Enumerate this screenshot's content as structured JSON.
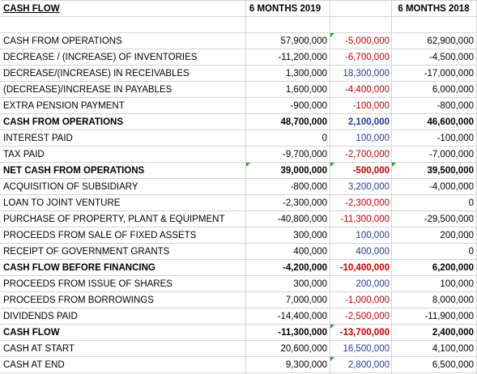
{
  "header": {
    "title": "CASH FLOW",
    "col_a": "6 MONTHS 2019",
    "col_c": "6 MONTHS 2018"
  },
  "rows": [
    {
      "label": "CASH FROM OPERATIONS",
      "a": "57,900,000",
      "b": "-5,000,000",
      "c": "62,900,000",
      "bold": false,
      "b_color": "red"
    },
    {
      "label": "DECREASE / (INCREASE) OF INVENTORIES",
      "a": "-11,200,000",
      "b": "-6,700,000",
      "c": "-4,500,000",
      "bold": false,
      "b_color": "red"
    },
    {
      "label": "DECREASE/(INCREASE) IN RECEIVABLES",
      "a": "1,300,000",
      "b": "18,300,000",
      "c": "-17,000,000",
      "bold": false,
      "b_color": "blue"
    },
    {
      "label": "(DECREASE)/INCREASE IN PAYABLES",
      "a": "1,600,000",
      "b": "-4,400,000",
      "c": "6,000,000",
      "bold": false,
      "b_color": "red"
    },
    {
      "label": "EXTRA PENSION PAYMENT",
      "a": "-900,000",
      "b": "-100,000",
      "c": "-800,000",
      "bold": false,
      "b_color": "red"
    },
    {
      "label": "CASH FROM OPERATIONS",
      "a": "48,700,000",
      "b": "2,100,000",
      "c": "46,600,000",
      "bold": true,
      "b_color": "blue"
    },
    {
      "label": "INTEREST PAID",
      "a": "0",
      "b": "100,000",
      "c": "-100,000",
      "bold": false,
      "b_color": "blue"
    },
    {
      "label": "TAX PAID",
      "a": "-9,700,000",
      "b": "-2,700,000",
      "c": "-7,000,000",
      "bold": false,
      "b_color": "red"
    },
    {
      "label": "NET CASH FROM OPERATIONS",
      "a": "39,000,000",
      "b": "-500,000",
      "c": "39,500,000",
      "bold": true,
      "b_color": "red"
    },
    {
      "label": "ACQUISITION OF SUBSIDIARY",
      "a": "-800,000",
      "b": "3,200,000",
      "c": "-4,000,000",
      "bold": false,
      "b_color": "blue"
    },
    {
      "label": "LOAN TO JOINT VENTURE",
      "a": "-2,300,000",
      "b": "-2,300,000",
      "c": "0",
      "bold": false,
      "b_color": "red"
    },
    {
      "label": "PURCHASE OF PROPERTY, PLANT & EQUIPMENT",
      "a": "-40,800,000",
      "b": "-11,300,000",
      "c": "-29,500,000",
      "bold": false,
      "b_color": "red"
    },
    {
      "label": "PROCEEDS FROM SALE OF FIXED ASSETS",
      "a": "300,000",
      "b": "100,000",
      "c": "200,000",
      "bold": false,
      "b_color": "blue"
    },
    {
      "label": "RECEIPT OF GOVERNMENT GRANTS",
      "a": "400,000",
      "b": "400,000",
      "c": "0",
      "bold": false,
      "b_color": "blue"
    },
    {
      "label": "CASH FLOW BEFORE FINANCING",
      "a": "-4,200,000",
      "b": "-10,400,000",
      "c": "6,200,000",
      "bold": true,
      "b_color": "red"
    },
    {
      "label": "PROCEEDS FROM ISSUE OF SHARES",
      "a": "300,000",
      "b": "200,000",
      "c": "100,000",
      "bold": false,
      "b_color": "blue"
    },
    {
      "label": "PROCEEDS FROM BORROWINGS",
      "a": "7,000,000",
      "b": "-1,000,000",
      "c": "8,000,000",
      "bold": false,
      "b_color": "red"
    },
    {
      "label": "DIVIDENDS PAID",
      "a": "-14,400,000",
      "b": "-2,500,000",
      "c": "-11,900,000",
      "bold": false,
      "b_color": "red"
    },
    {
      "label": "CASH FLOW",
      "a": "-11,300,000",
      "b": "-13,700,000",
      "c": "2,400,000",
      "bold": true,
      "b_color": "red"
    },
    {
      "label": "CASH AT START",
      "a": "20,600,000",
      "b": "16,500,000",
      "c": "4,100,000",
      "bold": false,
      "b_color": "blue"
    },
    {
      "label": "CASH AT END",
      "a": "9,300,000",
      "b": "2,800,000",
      "c": "6,500,000",
      "bold": false,
      "b_color": "blue"
    }
  ],
  "colors": {
    "negative_change": "#c00000",
    "positive_change": "#1f3a93",
    "comment_marker": "#22a022",
    "gridline": "#d4d4d4"
  }
}
